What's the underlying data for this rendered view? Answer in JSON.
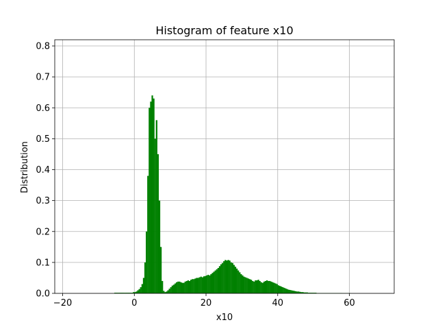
{
  "chart_data": {
    "type": "bar",
    "title": "Histogram of feature x10",
    "xlabel": "x10",
    "ylabel": "Distribution",
    "xlim": [
      -22.2,
      72.5
    ],
    "ylim": [
      0,
      0.82
    ],
    "xticks": [
      -20,
      0,
      20,
      40,
      60
    ],
    "yticks": [
      0.0,
      0.1,
      0.2,
      0.3,
      0.4,
      0.5,
      0.6,
      0.7,
      0.8
    ],
    "xtick_labels": [
      "−20",
      "0",
      "20",
      "40",
      "60"
    ],
    "ytick_labels": [
      "0.0",
      "0.1",
      "0.2",
      "0.3",
      "0.4",
      "0.5",
      "0.6",
      "0.7",
      "0.8"
    ],
    "grid": true,
    "bar_color": "#008000",
    "bin_width": 0.4,
    "bins": [
      [
        -5.6,
        0.002
      ],
      [
        -5.2,
        0.002
      ],
      [
        -4.8,
        0.002
      ],
      [
        -4.4,
        0.002
      ],
      [
        -4.0,
        0.002
      ],
      [
        -3.6,
        0.002
      ],
      [
        -3.2,
        0.002
      ],
      [
        -2.8,
        0.002
      ],
      [
        -2.4,
        0.002
      ],
      [
        -2.0,
        0.002
      ],
      [
        -1.6,
        0.002
      ],
      [
        -1.2,
        0.002
      ],
      [
        -0.8,
        0.002
      ],
      [
        -0.4,
        0.004
      ],
      [
        0.0,
        0.004
      ],
      [
        0.4,
        0.006
      ],
      [
        0.8,
        0.01
      ],
      [
        1.2,
        0.014
      ],
      [
        1.6,
        0.02
      ],
      [
        2.0,
        0.03
      ],
      [
        2.4,
        0.05
      ],
      [
        2.8,
        0.1
      ],
      [
        3.2,
        0.2
      ],
      [
        3.6,
        0.38
      ],
      [
        4.0,
        0.6
      ],
      [
        4.4,
        0.62
      ],
      [
        4.8,
        0.64
      ],
      [
        5.2,
        0.63
      ],
      [
        5.6,
        0.5
      ],
      [
        6.0,
        0.56
      ],
      [
        6.4,
        0.45
      ],
      [
        6.8,
        0.3
      ],
      [
        7.2,
        0.15
      ],
      [
        7.6,
        0.04
      ],
      [
        8.0,
        0.008
      ],
      [
        8.4,
        0.004
      ],
      [
        8.8,
        0.006
      ],
      [
        9.2,
        0.01
      ],
      [
        9.6,
        0.015
      ],
      [
        10.0,
        0.02
      ],
      [
        10.4,
        0.025
      ],
      [
        10.8,
        0.028
      ],
      [
        11.2,
        0.032
      ],
      [
        11.6,
        0.036
      ],
      [
        12.0,
        0.038
      ],
      [
        12.4,
        0.038
      ],
      [
        12.8,
        0.036
      ],
      [
        13.2,
        0.034
      ],
      [
        13.6,
        0.034
      ],
      [
        14.0,
        0.038
      ],
      [
        14.4,
        0.04
      ],
      [
        14.8,
        0.042
      ],
      [
        15.2,
        0.04
      ],
      [
        15.6,
        0.044
      ],
      [
        16.0,
        0.046
      ],
      [
        16.4,
        0.046
      ],
      [
        16.8,
        0.048
      ],
      [
        17.2,
        0.05
      ],
      [
        17.6,
        0.05
      ],
      [
        18.0,
        0.052
      ],
      [
        18.4,
        0.054
      ],
      [
        18.8,
        0.052
      ],
      [
        19.2,
        0.055
      ],
      [
        19.6,
        0.056
      ],
      [
        20.0,
        0.058
      ],
      [
        20.4,
        0.06
      ],
      [
        20.8,
        0.058
      ],
      [
        21.2,
        0.062
      ],
      [
        21.6,
        0.066
      ],
      [
        22.0,
        0.07
      ],
      [
        22.4,
        0.074
      ],
      [
        22.8,
        0.078
      ],
      [
        23.2,
        0.082
      ],
      [
        23.6,
        0.088
      ],
      [
        24.0,
        0.094
      ],
      [
        24.4,
        0.098
      ],
      [
        24.8,
        0.104
      ],
      [
        25.2,
        0.108
      ],
      [
        25.6,
        0.106
      ],
      [
        26.0,
        0.108
      ],
      [
        26.4,
        0.106
      ],
      [
        26.8,
        0.1
      ],
      [
        27.2,
        0.098
      ],
      [
        27.6,
        0.092
      ],
      [
        28.0,
        0.086
      ],
      [
        28.4,
        0.08
      ],
      [
        28.8,
        0.074
      ],
      [
        29.2,
        0.068
      ],
      [
        29.6,
        0.062
      ],
      [
        30.0,
        0.058
      ],
      [
        30.4,
        0.054
      ],
      [
        30.8,
        0.052
      ],
      [
        31.2,
        0.05
      ],
      [
        31.6,
        0.048
      ],
      [
        32.0,
        0.046
      ],
      [
        32.4,
        0.044
      ],
      [
        32.8,
        0.04
      ],
      [
        33.2,
        0.038
      ],
      [
        33.6,
        0.042
      ],
      [
        34.0,
        0.042
      ],
      [
        34.4,
        0.044
      ],
      [
        34.8,
        0.04
      ],
      [
        35.2,
        0.036
      ],
      [
        35.6,
        0.034
      ],
      [
        36.0,
        0.038
      ],
      [
        36.4,
        0.04
      ],
      [
        36.8,
        0.042
      ],
      [
        37.2,
        0.04
      ],
      [
        37.6,
        0.04
      ],
      [
        38.0,
        0.038
      ],
      [
        38.4,
        0.036
      ],
      [
        38.8,
        0.034
      ],
      [
        39.2,
        0.032
      ],
      [
        39.6,
        0.03
      ],
      [
        40.0,
        0.026
      ],
      [
        40.4,
        0.024
      ],
      [
        40.8,
        0.022
      ],
      [
        41.2,
        0.02
      ],
      [
        41.6,
        0.018
      ],
      [
        42.0,
        0.016
      ],
      [
        42.4,
        0.014
      ],
      [
        42.8,
        0.012
      ],
      [
        43.2,
        0.011
      ],
      [
        43.6,
        0.01
      ],
      [
        44.0,
        0.009
      ],
      [
        44.4,
        0.008
      ],
      [
        44.8,
        0.007
      ],
      [
        45.2,
        0.006
      ],
      [
        45.6,
        0.006
      ],
      [
        46.0,
        0.005
      ],
      [
        46.4,
        0.004
      ],
      [
        46.8,
        0.004
      ],
      [
        47.2,
        0.003
      ],
      [
        47.6,
        0.003
      ],
      [
        48.0,
        0.003
      ],
      [
        48.4,
        0.002
      ],
      [
        48.8,
        0.002
      ],
      [
        49.2,
        0.002
      ],
      [
        49.6,
        0.002
      ],
      [
        50.0,
        0.002
      ],
      [
        50.4,
        0.002
      ],
      [
        50.8,
        0.001
      ],
      [
        51.2,
        0.001
      ],
      [
        51.6,
        0.001
      ],
      [
        52.0,
        0.001
      ],
      [
        52.4,
        0.001
      ],
      [
        52.8,
        0.001
      ],
      [
        53.2,
        0.001
      ],
      [
        53.6,
        0.001
      ],
      [
        54.0,
        0.001
      ],
      [
        54.4,
        0.001
      ],
      [
        54.8,
        0.001
      ],
      [
        55.2,
        0.001
      ],
      [
        55.6,
        0.001
      ],
      [
        56.0,
        0.001
      ],
      [
        56.4,
        0.001
      ],
      [
        56.8,
        0.001
      ],
      [
        57.2,
        0.001
      ],
      [
        57.6,
        0.001
      ],
      [
        58.0,
        0.0005
      ],
      [
        58.4,
        0.0005
      ],
      [
        58.8,
        0.0005
      ],
      [
        59.2,
        0.0005
      ],
      [
        59.6,
        0.0005
      ],
      [
        60.0,
        0.0005
      ]
    ]
  }
}
